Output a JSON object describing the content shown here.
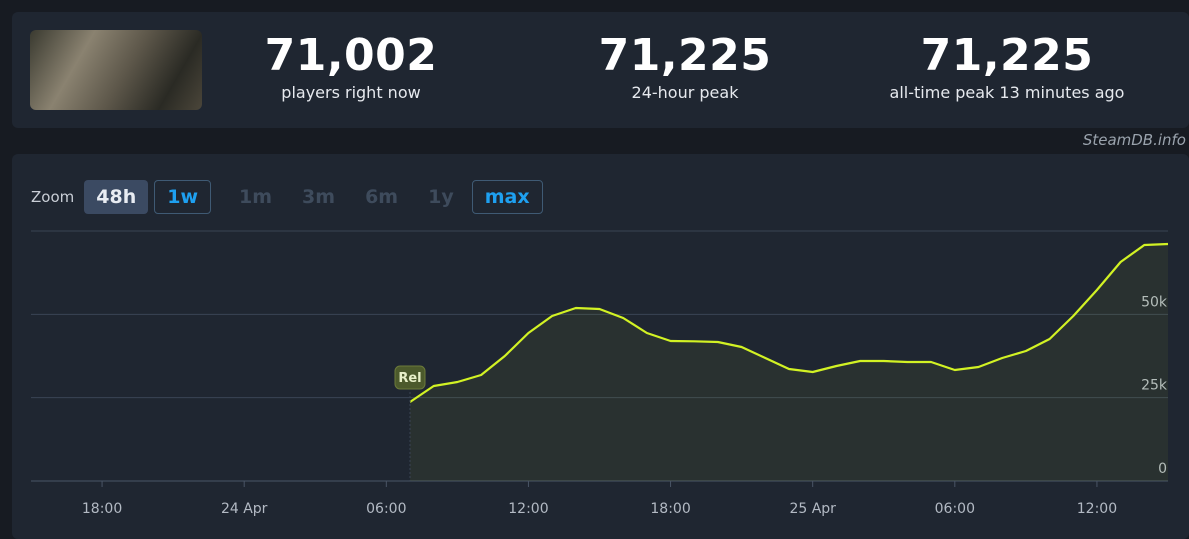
{
  "header": {
    "stats": [
      {
        "value": "71,002",
        "label": "players right now"
      },
      {
        "value": "71,225",
        "label": "24-hour peak"
      },
      {
        "value": "71,225",
        "label": "all-time peak 13 minutes ago"
      }
    ]
  },
  "watermark": "SteamDB.info",
  "zoom": {
    "label": "Zoom",
    "buttons": [
      "48h",
      "1w",
      "1m",
      "3m",
      "6m",
      "1y",
      "max"
    ]
  },
  "chart_data": {
    "type": "line",
    "color": "#d2f224",
    "x": [
      "24 Apr 07:00",
      "24 Apr 08:00",
      "24 Apr 09:00",
      "24 Apr 10:00",
      "24 Apr 11:00",
      "24 Apr 12:00",
      "24 Apr 13:00",
      "24 Apr 14:00",
      "24 Apr 15:00",
      "24 Apr 16:00",
      "24 Apr 17:00",
      "24 Apr 18:00",
      "24 Apr 19:00",
      "24 Apr 20:00",
      "24 Apr 21:00",
      "24 Apr 22:00",
      "24 Apr 23:00",
      "25 Apr 00:00",
      "25 Apr 01:00",
      "25 Apr 02:00",
      "25 Apr 03:00",
      "25 Apr 04:00",
      "25 Apr 05:00",
      "25 Apr 06:00",
      "25 Apr 07:00",
      "25 Apr 08:00",
      "25 Apr 09:00",
      "25 Apr 10:00",
      "25 Apr 11:00",
      "25 Apr 12:00",
      "25 Apr 13:00",
      "25 Apr 14:00",
      "25 Apr 15:00"
    ],
    "values": [
      23700,
      28500,
      29700,
      31800,
      37500,
      44400,
      49500,
      51900,
      51600,
      48900,
      44400,
      42000,
      41900,
      41700,
      40200,
      36900,
      33600,
      32700,
      34500,
      36000,
      36000,
      35700,
      35700,
      33300,
      34200,
      36900,
      39000,
      42600,
      49500,
      57300,
      65700,
      70800,
      71100
    ],
    "xlim": [
      "23 Apr 15:00",
      "25 Apr 15:00"
    ],
    "xticks": [
      {
        "value": "23 Apr 18:00",
        "label": "18:00"
      },
      {
        "value": "24 Apr 00:00",
        "label": "24 Apr"
      },
      {
        "value": "24 Apr 06:00",
        "label": "06:00"
      },
      {
        "value": "24 Apr 12:00",
        "label": "12:00"
      },
      {
        "value": "24 Apr 18:00",
        "label": "18:00"
      },
      {
        "value": "25 Apr 00:00",
        "label": "25 Apr"
      },
      {
        "value": "25 Apr 06:00",
        "label": "06:00"
      },
      {
        "value": "25 Apr 12:00",
        "label": "12:00"
      }
    ],
    "ylim": [
      0,
      75000
    ],
    "yticks": [
      0,
      {
        "value": 25000,
        "label": "25k"
      },
      {
        "value": 50000,
        "label": "50k"
      }
    ],
    "grid": true,
    "annotations": [
      {
        "x": "24 Apr 07:00",
        "text": "Rel"
      }
    ]
  }
}
